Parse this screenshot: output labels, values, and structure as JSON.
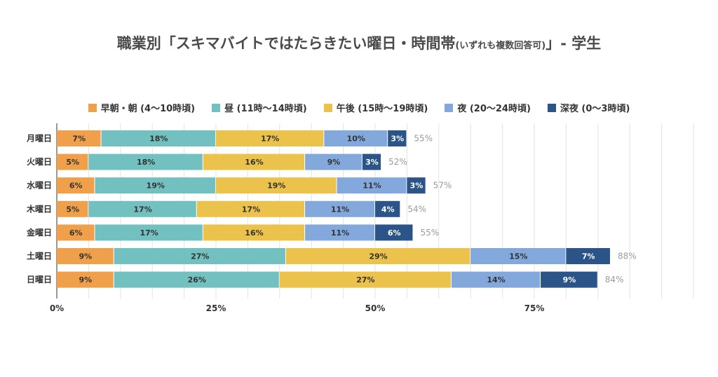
{
  "title": {
    "main": "職業別「スキマバイトではたらきたい曜日・時間帯",
    "note": "(いずれも複数回答可)",
    "suffix": "」- 学生"
  },
  "legend": [
    {
      "label": "早朝・朝 (4〜10時頃)",
      "color": "#F0A04B"
    },
    {
      "label": "昼 (11時〜14時頃)",
      "color": "#72C0C0"
    },
    {
      "label": "午後 (15時〜19時頃)",
      "color": "#EBC24B"
    },
    {
      "label": "夜 (20〜24時頃)",
      "color": "#82A8DC"
    },
    {
      "label": "深夜 (0〜3時頃)",
      "color": "#2B5588"
    }
  ],
  "chart_data": {
    "type": "bar",
    "orientation": "horizontal",
    "stacked": true,
    "categories": [
      "月曜日",
      "火曜日",
      "水曜日",
      "木曜日",
      "金曜日",
      "土曜日",
      "日曜日"
    ],
    "series": [
      {
        "name": "早朝・朝 (4〜10時頃)",
        "values": [
          7,
          5,
          6,
          5,
          6,
          9,
          9
        ]
      },
      {
        "name": "昼 (11時〜14時頃)",
        "values": [
          18,
          18,
          19,
          17,
          17,
          27,
          26
        ]
      },
      {
        "name": "午後 (15時〜19時頃)",
        "values": [
          17,
          16,
          19,
          17,
          16,
          29,
          27
        ]
      },
      {
        "name": "夜 (20〜24時頃)",
        "values": [
          10,
          9,
          11,
          11,
          11,
          15,
          14
        ]
      },
      {
        "name": "深夜 (0〜3時頃)",
        "values": [
          3,
          3,
          3,
          4,
          6,
          7,
          9
        ]
      }
    ],
    "totals": [
      "55%",
      "52%",
      "57%",
      "54%",
      "55%",
      "88%",
      "84%"
    ],
    "xticks": [
      "0%",
      "25%",
      "50%",
      "75%"
    ],
    "xlim": [
      0,
      100
    ],
    "grid": true,
    "legend_position": "top"
  }
}
